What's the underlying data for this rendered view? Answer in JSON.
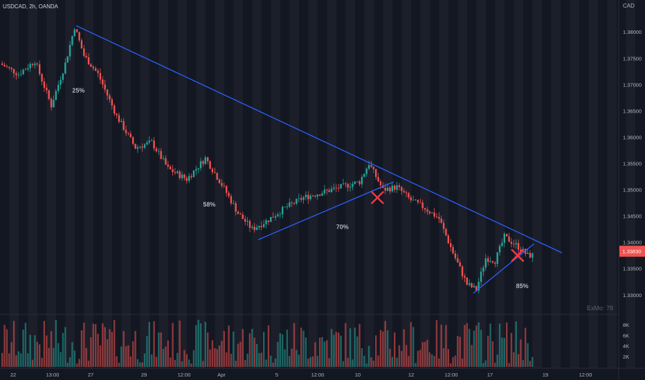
{
  "header": {
    "symbol_label": "USDCAD, 2h, OANDA",
    "currency": "CAD"
  },
  "watermark": "ExMo: 78",
  "current_price_label": "1.33830",
  "colors": {
    "background": "#131722",
    "stripe": "#1c1f2a",
    "up": "#26a69a",
    "down": "#ef5350",
    "trendline": "#2962ff",
    "cross": "#f23645",
    "axis_text": "#b2b5be",
    "annotation_text": "#b2b5be"
  },
  "chart_data": {
    "type": "candlestick",
    "price_axis": {
      "ticks": [
        "1.38000",
        "1.37500",
        "1.37000",
        "1.36500",
        "1.36000",
        "1.35500",
        "1.35000",
        "1.34500",
        "1.34000",
        "1.33500",
        "1.33000"
      ],
      "range": [
        1.328,
        1.3845
      ]
    },
    "volume_axis": {
      "ticks": [
        "8K",
        "6K",
        "4K",
        "2K"
      ],
      "range": [
        0,
        9600
      ]
    },
    "time_axis": {
      "ticks": [
        "22",
        "13:00",
        "27",
        "29",
        "12:00",
        "Apr",
        "5",
        "12:00",
        "10",
        "12",
        "12:00",
        "17",
        "19",
        "12:00"
      ]
    },
    "anchors": [
      [
        0,
        1.374
      ],
      [
        8,
        1.372
      ],
      [
        15,
        1.3745
      ],
      [
        22,
        1.366
      ],
      [
        28,
        1.374
      ],
      [
        32,
        1.381
      ],
      [
        36,
        1.3755
      ],
      [
        42,
        1.372
      ],
      [
        50,
        1.364
      ],
      [
        58,
        1.358
      ],
      [
        65,
        1.359
      ],
      [
        72,
        1.354
      ],
      [
        80,
        1.352
      ],
      [
        88,
        1.356
      ],
      [
        95,
        1.351
      ],
      [
        102,
        1.3455
      ],
      [
        108,
        1.3425
      ],
      [
        114,
        1.344
      ],
      [
        122,
        1.3465
      ],
      [
        130,
        1.3485
      ],
      [
        138,
        1.3495
      ],
      [
        146,
        1.3505
      ],
      [
        154,
        1.3515
      ],
      [
        158,
        1.355
      ],
      [
        164,
        1.35
      ],
      [
        170,
        1.3505
      ],
      [
        176,
        1.348
      ],
      [
        182,
        1.3465
      ],
      [
        188,
        1.3445
      ],
      [
        194,
        1.338
      ],
      [
        200,
        1.332
      ],
      [
        204,
        1.331
      ],
      [
        208,
        1.337
      ],
      [
        212,
        1.3365
      ],
      [
        216,
        1.341
      ],
      [
        221,
        1.3395
      ],
      [
        226,
        1.3375
      ]
    ],
    "trendlines": [
      {
        "name": "main-resistance",
        "from": [
          32,
          1.3812
        ],
        "to": [
          240,
          1.338
        ]
      },
      {
        "name": "lower-channel-1",
        "from": [
          110,
          1.3405
        ],
        "to": [
          168,
          1.3515
        ]
      },
      {
        "name": "lower-channel-2",
        "from": [
          202,
          1.3303
        ],
        "to": [
          228,
          1.3397
        ]
      }
    ],
    "annotations": [
      {
        "text": "25%",
        "x": 33,
        "price": 1.3685
      },
      {
        "text": "58%",
        "x": 89,
        "price": 1.3468
      },
      {
        "text": "70%",
        "x": 146,
        "price": 1.3425
      },
      {
        "text": "85%",
        "x": 223,
        "price": 1.3313
      }
    ],
    "crosses": [
      {
        "x": 161,
        "price": 1.3485
      },
      {
        "x": 221,
        "price": 1.3375
      }
    ]
  }
}
